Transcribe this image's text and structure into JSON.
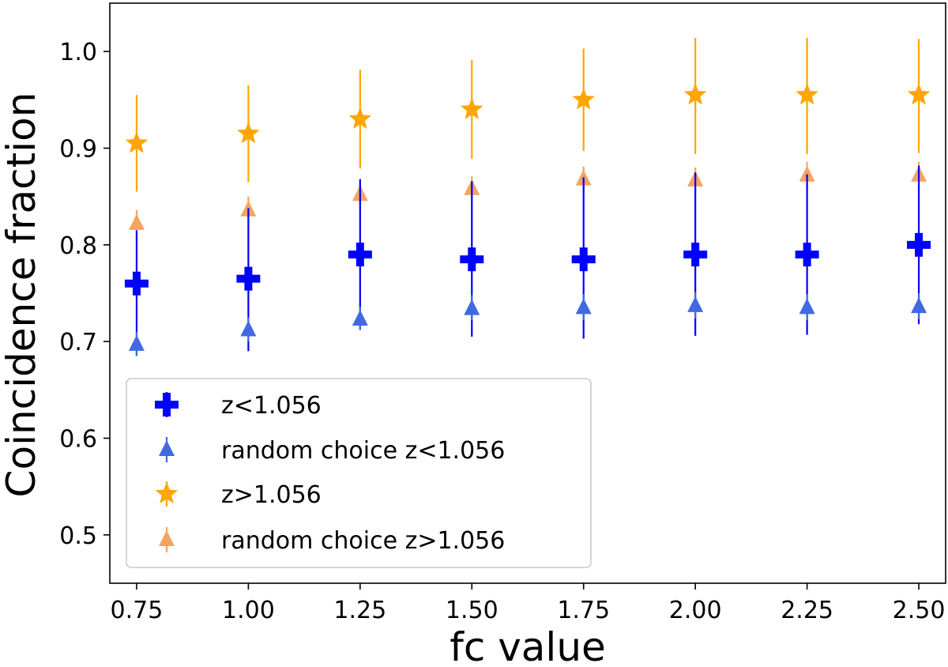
{
  "chart_data": {
    "type": "scatter",
    "title": "",
    "xlabel": "fc value",
    "ylabel": "Coincidence fraction",
    "x": [
      0.75,
      1.0,
      1.25,
      1.5,
      1.75,
      2.0,
      2.25,
      2.5
    ],
    "xticks": [
      "0.75",
      "1.00",
      "1.25",
      "1.50",
      "1.75",
      "2.00",
      "2.25",
      "2.50"
    ],
    "yticks": [
      "0.5",
      "0.6",
      "0.7",
      "0.8",
      "0.9",
      "1.0"
    ],
    "xlim": [
      0.69,
      2.56
    ],
    "ylim": [
      0.45,
      1.05
    ],
    "legend_position": "lower-left",
    "series": [
      {
        "name": "z<1.056",
        "marker": "plus",
        "color": "#0000ff",
        "values": [
          0.76,
          0.765,
          0.79,
          0.785,
          0.785,
          0.79,
          0.79,
          0.8
        ],
        "err_low": [
          0.685,
          0.69,
          0.712,
          0.705,
          0.703,
          0.706,
          0.707,
          0.718
        ],
        "err_high": [
          0.815,
          0.838,
          0.868,
          0.866,
          0.87,
          0.875,
          0.873,
          0.882
        ]
      },
      {
        "name": "random choice z<1.056",
        "marker": "triangle",
        "color": "#4169e1",
        "values": [
          0.697,
          0.712,
          0.723,
          0.734,
          0.735,
          0.737,
          0.735,
          0.736
        ],
        "err_low": [
          0.685,
          0.7,
          0.712,
          0.722,
          0.722,
          0.724,
          0.722,
          0.723
        ],
        "err_high": [
          0.71,
          0.725,
          0.736,
          0.748,
          0.749,
          0.751,
          0.749,
          0.75
        ]
      },
      {
        "name": "z>1.056",
        "marker": "star",
        "color": "#ffa500",
        "values": [
          0.905,
          0.915,
          0.93,
          0.94,
          0.95,
          0.955,
          0.955,
          0.955
        ],
        "err_low": [
          0.855,
          0.865,
          0.879,
          0.889,
          0.897,
          0.894,
          0.894,
          0.895
        ],
        "err_high": [
          0.955,
          0.965,
          0.981,
          0.991,
          1.003,
          1.014,
          1.014,
          1.013
        ]
      },
      {
        "name": "random choice z>1.056",
        "marker": "triangle",
        "color": "#f4a460",
        "values": [
          0.822,
          0.836,
          0.852,
          0.858,
          0.868,
          0.867,
          0.872,
          0.872
        ],
        "err_low": [
          0.808,
          0.822,
          0.838,
          0.845,
          0.856,
          0.855,
          0.859,
          0.859
        ],
        "err_high": [
          0.836,
          0.85,
          0.866,
          0.871,
          0.881,
          0.88,
          0.886,
          0.886
        ]
      }
    ]
  }
}
